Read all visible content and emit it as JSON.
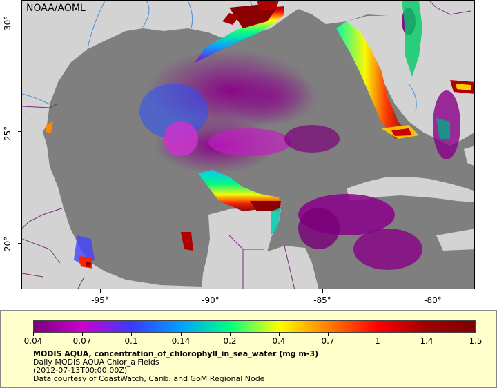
{
  "map": {
    "credit": "NOAA/AOML",
    "lat_labels": [
      "30°",
      "25°",
      "20°"
    ],
    "lon_labels": [
      "-95°",
      "-90°",
      "-85°",
      "-80°"
    ],
    "colors": {
      "land": "#d3d3d3",
      "water_no_data": "#7f7f7f",
      "border": "#7a2a7a",
      "river": "#4a8fd8"
    }
  },
  "legend": {
    "colorbar_labels": [
      "0.04",
      "0.07",
      "0.1",
      "0.14",
      "0.2",
      "0.4",
      "0.7",
      "1",
      "1.4",
      "1.5"
    ],
    "colorbar_colors": [
      "#7a007a",
      "#cc00cc",
      "#3a3aff",
      "#00a0ff",
      "#00ff80",
      "#ffff00",
      "#ff8000",
      "#ff0000",
      "#a00000",
      "#800000"
    ],
    "title": "MODIS AQUA, concentration_of_chlorophyll_in_sea_water (mg m-3)",
    "subtitle": "Daily MODIS AQUA Chlor_a Fields",
    "time": "(2012-07-13T00:00:00Z)",
    "courtesy": "Data courtesy of CoastWatch, Carib. and GoM Regional Node"
  }
}
